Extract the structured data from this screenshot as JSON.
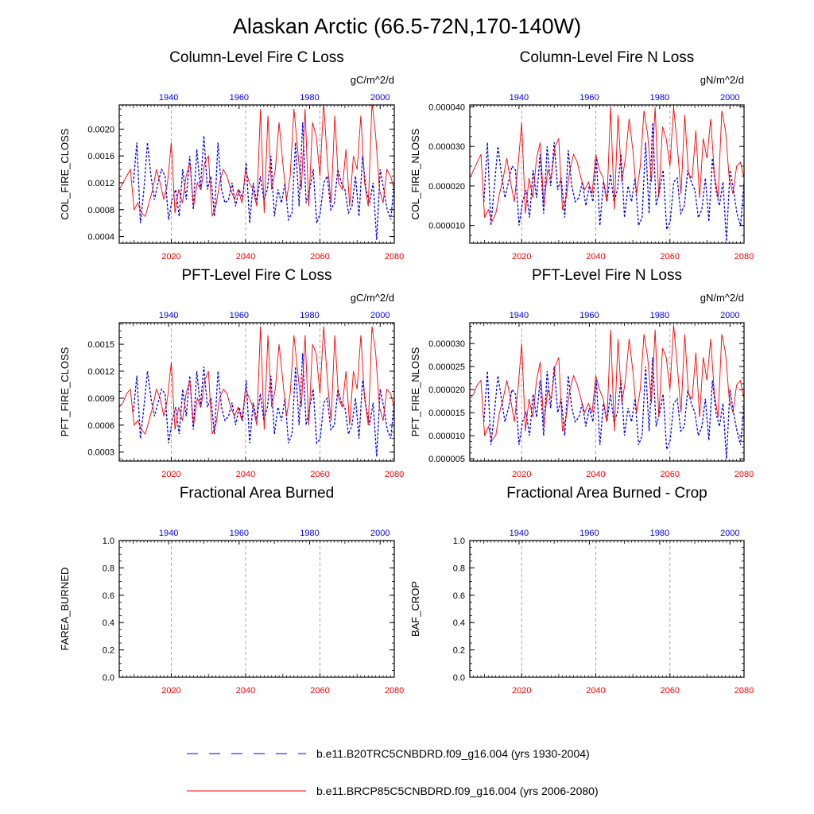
{
  "page_title": "Alaskan Arctic (66.5-72N,170-140W)",
  "colors": {
    "historical": "#0000ff",
    "future": "#ff0000",
    "axis": "#000000",
    "grid": "#aaaaaa"
  },
  "legend": [
    {
      "id": "historical",
      "label": "b.e11.B20TRC5CNBDRD.f09_g16.004 (yrs 1930-2004)",
      "style": "dashed"
    },
    {
      "id": "future",
      "label": "b.e11.BRCP85C5CNBDRD.f09_g16.004 (yrs 2006-2080)",
      "style": "solid"
    }
  ],
  "chart_data": [
    {
      "type": "line",
      "title": "Column-Level Fire C Loss",
      "units": "gC/m^2/d",
      "ylabel": "COL_FIRE_CLOSS",
      "ylim": [
        0.0003,
        0.00236
      ],
      "yticks": [
        "0.0004",
        "0.0008",
        "0.0012",
        "0.0016",
        "0.0020"
      ],
      "x_bottom": {
        "range": [
          2006,
          2080
        ],
        "ticks": [
          "2020",
          "2040",
          "2060",
          "2080"
        ]
      },
      "x_top": {
        "range": [
          1926,
          2004
        ],
        "ticks": [
          "1940",
          "1960",
          "1980",
          "2000"
        ]
      },
      "gridlines": "dashed vertical at 2020, 2040, 2060",
      "series": [
        {
          "id": "future",
          "x_axis": "bottom",
          "x_start": 2006,
          "values": [
            0.0011,
            0.0012,
            0.0013,
            0.0014,
            0.0008,
            0.0009,
            0.00075,
            0.0007,
            0.0009,
            0.0011,
            0.0014,
            0.0012,
            0.00095,
            0.0012,
            0.0018,
            0.00075,
            0.0011,
            0.0009,
            0.0013,
            0.0015,
            0.00085,
            0.0012,
            0.0011,
            0.0015,
            0.0016,
            0.0007,
            0.00085,
            0.0012,
            0.0014,
            0.0013,
            0.0011,
            0.00095,
            0.0011,
            0.0009,
            0.0014,
            0.0012,
            0.0011,
            0.00085,
            0.0023,
            0.00075,
            0.0022,
            0.0011,
            0.0014,
            0.0021,
            0.0015,
            0.00095,
            0.0013,
            0.0023,
            0.0017,
            0.0011,
            0.0023,
            0.00085,
            0.0021,
            0.0019,
            0.0013,
            0.0024,
            0.0015,
            0.0009,
            0.0022,
            0.0012,
            0.0011,
            0.0017,
            0.00085,
            0.0016,
            0.0014,
            0.0022,
            0.0012,
            0.00085,
            0.0024,
            0.0019,
            0.0011,
            0.0009,
            0.0014,
            0.0013,
            0.0011
          ]
        },
        {
          "id": "historical",
          "x_axis": "top",
          "x_start": 1930,
          "values": [
            0.0012,
            0.0018,
            0.0006,
            0.0011,
            0.0018,
            0.0013,
            0.00095,
            0.0012,
            0.0014,
            0.0013,
            0.00065,
            0.00095,
            0.0011,
            0.0007,
            0.0014,
            0.00095,
            0.0016,
            0.0008,
            0.0017,
            0.0011,
            0.0019,
            0.0011,
            0.0013,
            0.0007,
            0.0018,
            0.0011,
            0.0009,
            0.00095,
            0.0012,
            0.00085,
            0.0011,
            0.00095,
            0.0015,
            0.0006,
            0.0012,
            0.0009,
            0.0013,
            0.00095,
            0.0011,
            0.0016,
            0.0007,
            0.0011,
            0.0009,
            0.0012,
            0.00065,
            0.00075,
            0.0018,
            0.00085,
            0.0021,
            0.0009,
            0.0011,
            0.0014,
            0.0006,
            0.00075,
            0.0012,
            0.0013,
            0.0008,
            0.0009,
            0.0014,
            0.0012,
            0.0011,
            0.00075,
            0.00085,
            0.0013,
            0.0007,
            0.0016,
            0.0011,
            0.0009,
            0.0012,
            0.00035,
            0.0014,
            0.0011,
            0.0008,
            0.00065,
            0.0012
          ]
        }
      ]
    },
    {
      "type": "line",
      "title": "Column-Level Fire N Loss",
      "units": "gN/m^2/d",
      "ylabel": "COL_FIRE_NLOSS",
      "ylim": [
        5.5e-06,
        4.05e-05
      ],
      "yticks": [
        "0.000010",
        "0.000020",
        "0.000030",
        "0.000040"
      ],
      "x_bottom": {
        "range": [
          2006,
          2080
        ],
        "ticks": [
          "2020",
          "2040",
          "2060",
          "2080"
        ]
      },
      "x_top": {
        "range": [
          1926,
          2004
        ],
        "ticks": [
          "1940",
          "1960",
          "1980",
          "2000"
        ]
      },
      "gridlines": "dashed vertical at 2020, 2040, 2060",
      "series": [
        {
          "id": "future",
          "x_axis": "bottom",
          "x_start": 2006,
          "values": [
            2.2e-05,
            2.4e-05,
            2.6e-05,
            2.8e-05,
            1.2e-05,
            1.4e-05,
            1.1e-05,
            1.3e-05,
            1.8e-05,
            2.2e-05,
            2.7e-05,
            2.1e-05,
            1.6e-05,
            2.5e-05,
            3.6e-05,
            1.3e-05,
            2.2e-05,
            1.7e-05,
            2.7e-05,
            3.1e-05,
            1.5e-05,
            2.4e-05,
            2.2e-05,
            3e-05,
            3.2e-05,
            1.4e-05,
            1.7e-05,
            2.4e-05,
            2.8e-05,
            2.6e-05,
            2.2e-05,
            1.9e-05,
            2.1e-05,
            1.8e-05,
            2.8e-05,
            2.4e-05,
            2.2e-05,
            1.6e-05,
            4e-05,
            1.4e-05,
            3.8e-05,
            2.1e-05,
            2.7e-05,
            3.7e-05,
            2.9e-05,
            1.8e-05,
            2.5e-05,
            3.9e-05,
            3.3e-05,
            2.1e-05,
            4e-05,
            1.7e-05,
            3.5e-05,
            3.2e-05,
            2.5e-05,
            4e-05,
            3e-05,
            1.8e-05,
            3.8e-05,
            2.3e-05,
            2.2e-05,
            3.4e-05,
            1.7e-05,
            3.2e-05,
            2.7e-05,
            3.7e-05,
            2.3e-05,
            1.7e-05,
            3.9e-05,
            3.4e-05,
            2.2e-05,
            1.8e-05,
            2.5e-05,
            2.6e-05,
            2.2e-05
          ]
        },
        {
          "id": "historical",
          "x_axis": "top",
          "x_start": 1930,
          "values": [
            1.6e-05,
            3.1e-05,
            1e-05,
            2e-05,
            3e-05,
            2.3e-05,
            1.7e-05,
            2.1e-05,
            2.5e-05,
            2.4e-05,
            1e-05,
            1.6e-05,
            1.9e-05,
            1.2e-05,
            2.4e-05,
            1.7e-05,
            2.8e-05,
            1.3e-05,
            3e-05,
            2e-05,
            3.1e-05,
            1.9e-05,
            2.2e-05,
            1.2e-05,
            2.9e-05,
            2e-05,
            1.6e-05,
            1.7e-05,
            2.1e-05,
            1.5e-05,
            2e-05,
            1.6e-05,
            2.7e-05,
            1e-05,
            2.1e-05,
            1.6e-05,
            2.3e-05,
            1.6e-05,
            1.9e-05,
            2.8e-05,
            1.2e-05,
            2e-05,
            1.6e-05,
            2.2e-05,
            1e-05,
            1.2e-05,
            3.1e-05,
            1.3e-05,
            3.6e-05,
            1.5e-05,
            1.9e-05,
            2.4e-05,
            9e-06,
            1.1e-05,
            2.1e-05,
            2.2e-05,
            1.3e-05,
            1.5e-05,
            2.4e-05,
            2.1e-05,
            1.9e-05,
            1.2e-05,
            1.4e-05,
            2.2e-05,
            1.1e-05,
            2.7e-05,
            1.9e-05,
            1.5e-05,
            2.1e-05,
            6e-06,
            2.4e-05,
            1.9e-05,
            1.3e-05,
            1e-05,
            2.1e-05
          ]
        }
      ]
    },
    {
      "type": "line",
      "title": "PFT-Level Fire C Loss",
      "units": "gC/m^2/d",
      "ylabel": "PFT_FIRE_CLOSS",
      "ylim": [
        0.0002,
        0.00174
      ],
      "yticks": [
        "0.0003",
        "0.0006",
        "0.0009",
        "0.0012",
        "0.0015"
      ],
      "x_bottom": {
        "range": [
          2006,
          2080
        ],
        "ticks": [
          "2020",
          "2040",
          "2060",
          "2080"
        ]
      },
      "x_top": {
        "range": [
          1926,
          2004
        ],
        "ticks": [
          "1940",
          "1960",
          "1980",
          "2000"
        ]
      },
      "gridlines": "dashed vertical at 2020, 2040, 2060",
      "series": [
        {
          "id": "future",
          "x_axis": "bottom",
          "x_start": 2006,
          "values": [
            0.0008,
            0.00085,
            0.00095,
            0.001,
            0.0006,
            0.00065,
            0.00055,
            0.0005,
            0.00065,
            0.0008,
            0.001,
            0.0009,
            0.0007,
            0.0009,
            0.0013,
            0.00055,
            0.0008,
            0.00065,
            0.00095,
            0.0011,
            0.0006,
            0.0009,
            0.0008,
            0.0011,
            0.0012,
            0.0005,
            0.0006,
            0.0009,
            0.001,
            0.00095,
            0.0008,
            0.0007,
            0.0008,
            0.00065,
            0.001,
            0.0009,
            0.0008,
            0.0006,
            0.0017,
            0.00055,
            0.0016,
            0.0008,
            0.001,
            0.0015,
            0.0011,
            0.0007,
            0.00095,
            0.0016,
            0.0012,
            0.0008,
            0.0016,
            0.0006,
            0.0015,
            0.0014,
            0.00095,
            0.0017,
            0.0011,
            0.00065,
            0.0016,
            0.0009,
            0.0008,
            0.0012,
            0.0006,
            0.0012,
            0.001,
            0.0016,
            0.0009,
            0.0006,
            0.0017,
            0.0014,
            0.0008,
            0.00065,
            0.001,
            0.00095,
            0.0008
          ]
        },
        {
          "id": "historical",
          "x_axis": "top",
          "x_start": 1930,
          "values": [
            0.00075,
            0.00115,
            0.00045,
            0.0008,
            0.0012,
            0.0009,
            0.0007,
            0.00085,
            0.001,
            0.00095,
            0.0004,
            0.00065,
            0.0008,
            0.0005,
            0.001,
            0.0007,
            0.00115,
            0.00055,
            0.0012,
            0.0008,
            0.00125,
            0.0008,
            0.0009,
            0.0005,
            0.0012,
            0.0008,
            0.00065,
            0.0007,
            0.00085,
            0.0006,
            0.0008,
            0.00065,
            0.0011,
            0.0004,
            0.00085,
            0.00065,
            0.00095,
            0.00065,
            0.0008,
            0.00115,
            0.0005,
            0.0008,
            0.00065,
            0.0009,
            0.0004,
            0.0005,
            0.00125,
            0.0006,
            0.0014,
            0.0006,
            0.0008,
            0.001,
            0.0004,
            0.00045,
            0.00085,
            0.0009,
            0.00055,
            0.0006,
            0.001,
            0.00085,
            0.0008,
            0.0005,
            0.0006,
            0.0009,
            0.00045,
            0.0011,
            0.0008,
            0.0006,
            0.00085,
            0.00025,
            0.001,
            0.0008,
            0.00055,
            0.00045,
            0.00085
          ]
        }
      ]
    },
    {
      "type": "line",
      "title": "PFT-Level Fire N Loss",
      "units": "gN/m^2/d",
      "ylabel": "PFT_FIRE_NLOSS",
      "ylim": [
        4.5e-06,
        3.45e-05
      ],
      "yticks": [
        "0.000005",
        "0.000010",
        "0.000015",
        "0.000020",
        "0.000025",
        "0.000030"
      ],
      "x_bottom": {
        "range": [
          2006,
          2080
        ],
        "ticks": [
          "2020",
          "2040",
          "2060",
          "2080"
        ]
      },
      "x_top": {
        "range": [
          1926,
          2004
        ],
        "ticks": [
          "1940",
          "1960",
          "1980",
          "2000"
        ]
      },
      "gridlines": "dashed vertical at 2020, 2040, 2060",
      "series": [
        {
          "id": "future",
          "x_axis": "bottom",
          "x_start": 2006,
          "values": [
            1.8e-05,
            1.9e-05,
            2.1e-05,
            2.2e-05,
            1e-05,
            1.2e-05,
            9e-06,
            1e-05,
            1.5e-05,
            1.8e-05,
            2.2e-05,
            1.8e-05,
            1.3e-05,
            2e-05,
            3e-05,
            1.1e-05,
            1.8e-05,
            1.4e-05,
            2.2e-05,
            2.6e-05,
            1.2e-05,
            2e-05,
            1.8e-05,
            2.5e-05,
            2.7e-05,
            1.1e-05,
            1.4e-05,
            2e-05,
            2.3e-05,
            2.1e-05,
            1.8e-05,
            1.5e-05,
            1.7e-05,
            1.5e-05,
            2.3e-05,
            2e-05,
            1.8e-05,
            1.3e-05,
            3.3e-05,
            1.1e-05,
            3.1e-05,
            1.7e-05,
            2.2e-05,
            3.1e-05,
            2.4e-05,
            1.5e-05,
            2e-05,
            3.2e-05,
            2.7e-05,
            1.7e-05,
            3.3e-05,
            1.4e-05,
            2.9e-05,
            2.7e-05,
            2e-05,
            3.4e-05,
            2.5e-05,
            1.5e-05,
            3.2e-05,
            1.9e-05,
            1.8e-05,
            2.8e-05,
            1.4e-05,
            2.7e-05,
            2.2e-05,
            3.1e-05,
            1.9e-05,
            1.4e-05,
            3.2e-05,
            2.8e-05,
            1.8e-05,
            1.5e-05,
            2.1e-05,
            2.2e-05,
            1.8e-05
          ]
        },
        {
          "id": "historical",
          "x_axis": "top",
          "x_start": 1930,
          "values": [
            1.3e-05,
            2.4e-05,
            8e-06,
            1.5e-05,
            2.3e-05,
            1.8e-05,
            1.3e-05,
            1.6e-05,
            2e-05,
            1.9e-05,
            8e-06,
            1.3e-05,
            1.5e-05,
            1e-05,
            1.9e-05,
            1.4e-05,
            2.2e-05,
            1e-05,
            2.4e-05,
            1.6e-05,
            2.5e-05,
            1.5e-05,
            1.8e-05,
            1e-05,
            2.3e-05,
            1.6e-05,
            1.3e-05,
            1.4e-05,
            1.7e-05,
            1.2e-05,
            1.6e-05,
            1.3e-05,
            2.2e-05,
            8e-06,
            1.7e-05,
            1.3e-05,
            1.9e-05,
            1.3e-05,
            1.5e-05,
            2.2e-05,
            1e-05,
            1.6e-05,
            1.3e-05,
            1.8e-05,
            8e-06,
            1e-05,
            2.5e-05,
            1.1e-05,
            2.7e-05,
            1.2e-05,
            1.5e-05,
            1.9e-05,
            7e-06,
            9e-06,
            1.7e-05,
            1.8e-05,
            1.1e-05,
            1.2e-05,
            2e-05,
            1.7e-05,
            1.5e-05,
            1e-05,
            1.2e-05,
            1.8e-05,
            9e-06,
            2.2e-05,
            1.5e-05,
            1.2e-05,
            1.7e-05,
            5e-06,
            2e-05,
            1.5e-05,
            1.1e-05,
            8e-06,
            1.7e-05
          ]
        }
      ]
    },
    {
      "type": "line",
      "title": "Fractional Area Burned",
      "units": "",
      "ylabel": "FAREA_BURNED",
      "ylim": [
        0,
        1
      ],
      "yticks": [
        "0.0",
        "0.2",
        "0.4",
        "0.6",
        "0.8",
        "1.0"
      ],
      "x_bottom": {
        "range": [
          2006,
          2080
        ],
        "ticks": [
          "2020",
          "2040",
          "2060",
          "2080"
        ]
      },
      "x_top": {
        "range": [
          1926,
          2004
        ],
        "ticks": [
          "1940",
          "1960",
          "1980",
          "2000"
        ]
      },
      "gridlines": "dashed vertical at 2020, 2040, 2060",
      "series": []
    },
    {
      "type": "line",
      "title": "Fractional Area Burned - Crop",
      "units": "",
      "ylabel": "BAF_CROP",
      "ylim": [
        0,
        1
      ],
      "yticks": [
        "0.0",
        "0.2",
        "0.4",
        "0.6",
        "0.8",
        "1.0"
      ],
      "x_bottom": {
        "range": [
          2006,
          2080
        ],
        "ticks": [
          "2020",
          "2040",
          "2060",
          "2080"
        ]
      },
      "x_top": {
        "range": [
          1926,
          2004
        ],
        "ticks": [
          "1940",
          "1960",
          "1980",
          "2000"
        ]
      },
      "gridlines": "dashed vertical at 2020, 2040, 2060",
      "series": []
    }
  ]
}
